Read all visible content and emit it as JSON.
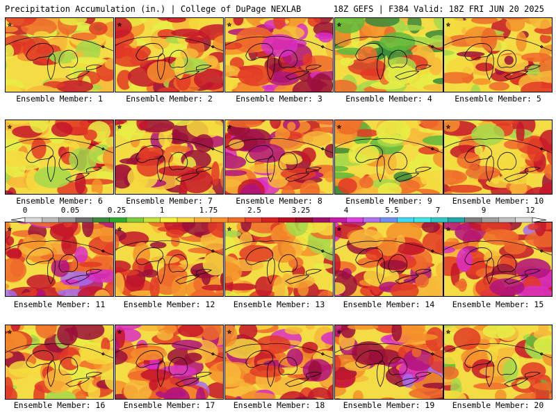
{
  "header": {
    "left": "Precipitation Accumulation (in.) | College of DuPage NEXLAB",
    "right": "18Z GEFS | F384 Valid: 18Z FRI JUN 20 2025"
  },
  "panels": [
    {
      "caption": "Ensemble Member: 1",
      "wetness": 0.45
    },
    {
      "caption": "Ensemble Member: 2",
      "wetness": 0.55
    },
    {
      "caption": "Ensemble Member: 3",
      "wetness": 0.75
    },
    {
      "caption": "Ensemble Member: 4",
      "wetness": 0.4
    },
    {
      "caption": "Ensemble Member: 5",
      "wetness": 0.55
    },
    {
      "caption": "Ensemble Member: 6",
      "wetness": 0.55
    },
    {
      "caption": "Ensemble Member: 7",
      "wetness": 0.6
    },
    {
      "caption": "Ensemble Member: 8",
      "wetness": 0.7
    },
    {
      "caption": "Ensemble Member: 9",
      "wetness": 0.35
    },
    {
      "caption": "Ensemble Member: 10",
      "wetness": 0.55
    },
    {
      "caption": "Ensemble Member: 11",
      "wetness": 0.85
    },
    {
      "caption": "Ensemble Member: 12",
      "wetness": 0.65
    },
    {
      "caption": "Ensemble Member: 13",
      "wetness": 0.55
    },
    {
      "caption": "Ensemble Member: 14",
      "wetness": 0.75
    },
    {
      "caption": "Ensemble Member: 15",
      "wetness": 0.8
    },
    {
      "caption": "Ensemble Member: 16",
      "wetness": 0.5
    },
    {
      "caption": "Ensemble Member: 17",
      "wetness": 0.8
    },
    {
      "caption": "Ensemble Member: 18",
      "wetness": 0.7
    },
    {
      "caption": "Ensemble Member: 19",
      "wetness": 0.85
    },
    {
      "caption": "Ensemble Member: 20",
      "wetness": 0.45
    }
  ],
  "legend": {
    "labels": [
      "0",
      "0.05",
      "0.25",
      "1",
      "1.75",
      "2.5",
      "3.25",
      "4",
      "5.5",
      "7",
      "9",
      "12"
    ],
    "colors": [
      "#d9d9d9",
      "#bcbcbc",
      "#9a9a9a",
      "#6f6f6f",
      "#3c8a3c",
      "#2faa2f",
      "#7fcc3a",
      "#c6e23a",
      "#f2f23a",
      "#f7d23a",
      "#f7b03a",
      "#f5902a",
      "#f06a28",
      "#e8402a",
      "#d81e22",
      "#b80f20",
      "#960a2a",
      "#a01070",
      "#c61aa8",
      "#e040e0",
      "#b070f0",
      "#7090f0",
      "#40d8f0",
      "#40e6e6",
      "#30c8c8",
      "#20a8a8",
      "#808080",
      "#a0a0a0",
      "#c0c0c0",
      "#d8d8d8"
    ]
  },
  "map_palette": [
    "#3a8a3a",
    "#5cb83c",
    "#a6d84a",
    "#e8ee46",
    "#f6da3e",
    "#f7b83a",
    "#f4902c",
    "#ee6a2a",
    "#e23a26",
    "#c4162a",
    "#9a0f3a",
    "#b0137c",
    "#d82ec4",
    "#a46cee",
    "#56c8f0"
  ]
}
